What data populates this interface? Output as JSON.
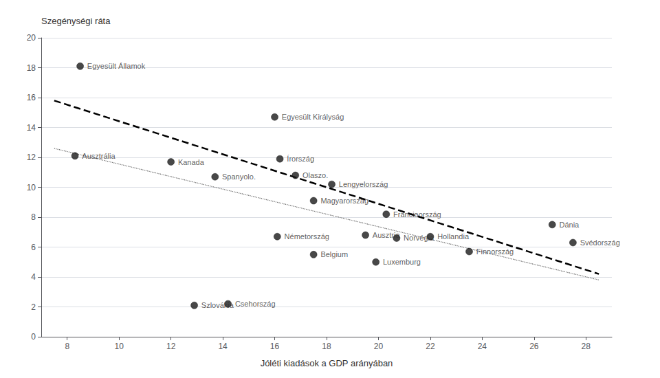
{
  "chart_data": {
    "type": "scatter",
    "ylabel": "Szegénységi ráta",
    "xlabel": "Jóléti kiadások a GDP arányában",
    "xlim": [
      7,
      29
    ],
    "ylim": [
      0,
      20
    ],
    "xticks": [
      8,
      10,
      12,
      14,
      16,
      18,
      20,
      22,
      24,
      26,
      28
    ],
    "yticks": [
      0,
      2,
      4,
      6,
      8,
      10,
      12,
      14,
      16,
      18,
      20
    ],
    "grid": true,
    "series": [
      {
        "type": "scatter",
        "color": "#1a1a1a",
        "labels": [
          "Egyesült Államok",
          "Ausztrália",
          "Kanada",
          "Spanyolo.",
          "Egyesült Királyság",
          "Írország",
          "Olaszo.",
          "Lengyelország",
          "Magyarország",
          "Németország",
          "Ausztria",
          "Norvégia",
          "Franciaország",
          "Hollandia",
          "Belgium",
          "Luxemburg",
          "Dánia",
          "Svédország",
          "Finnország",
          "Szlovákia",
          "Csehország"
        ],
        "x": [
          8.5,
          8.3,
          12.0,
          13.7,
          16.0,
          16.2,
          16.8,
          18.2,
          17.5,
          16.1,
          19.5,
          20.7,
          20.3,
          22.0,
          17.5,
          19.9,
          26.7,
          27.5,
          23.5,
          12.9,
          14.2
        ],
        "values": [
          18.1,
          12.1,
          11.7,
          10.7,
          14.7,
          11.9,
          10.8,
          10.2,
          9.1,
          6.7,
          6.8,
          6.6,
          8.2,
          6.7,
          5.5,
          5.0,
          7.5,
          6.3,
          5.7,
          2.1,
          2.2
        ]
      },
      {
        "type": "line",
        "line_style": "dashed",
        "color": "#000000",
        "x": [
          7.5,
          28.5
        ],
        "values": [
          15.8,
          4.2
        ]
      },
      {
        "type": "line",
        "line_style": "dotted",
        "color": "#666666",
        "x": [
          7.5,
          28.5
        ],
        "values": [
          12.6,
          3.8
        ]
      }
    ]
  }
}
